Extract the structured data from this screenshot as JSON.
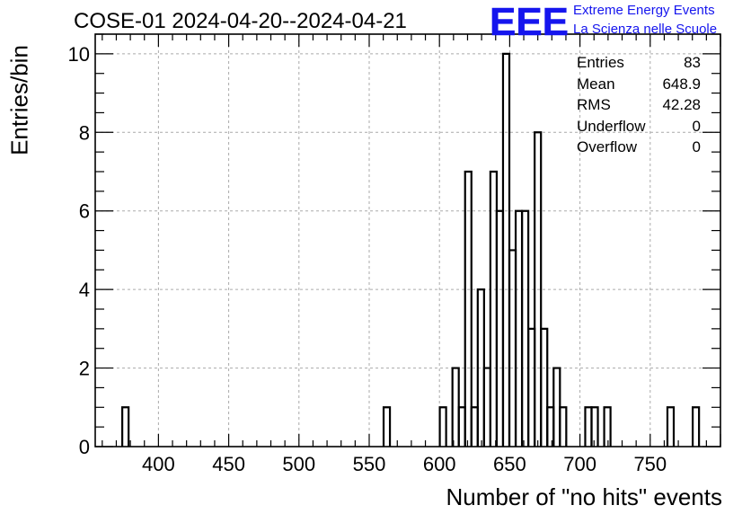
{
  "title": "COSE-01 2024-04-20--2024-04-21",
  "logo": {
    "mark": "EEE",
    "line1": "Extreme Energy Events",
    "line2": "La Scienza nelle Scuole",
    "color": "#1515ee"
  },
  "stats": [
    {
      "label": "Entries",
      "value": "83"
    },
    {
      "label": "Mean",
      "value": "648.9"
    },
    {
      "label": "RMS",
      "value": "42.28"
    },
    {
      "label": "Underflow",
      "value": "0"
    },
    {
      "label": "Overflow",
      "value": "0"
    }
  ],
  "chart_data": {
    "type": "bar",
    "style": "step-histogram",
    "xlabel": "Number of \"no hits\" events",
    "ylabel": "Entries/bin",
    "xlim": [
      355,
      800
    ],
    "ylim": [
      0,
      10.5
    ],
    "bin_width": 4.5,
    "bins": [
      {
        "x": 376.5,
        "count": 1
      },
      {
        "x": 562.5,
        "count": 1
      },
      {
        "x": 602.5,
        "count": 1
      },
      {
        "x": 611.5,
        "count": 2
      },
      {
        "x": 616,
        "count": 1
      },
      {
        "x": 620.5,
        "count": 7
      },
      {
        "x": 625,
        "count": 1
      },
      {
        "x": 629.5,
        "count": 4
      },
      {
        "x": 634,
        "count": 2
      },
      {
        "x": 638.5,
        "count": 7
      },
      {
        "x": 643,
        "count": 6
      },
      {
        "x": 647.5,
        "count": 10
      },
      {
        "x": 652,
        "count": 5
      },
      {
        "x": 656.5,
        "count": 6
      },
      {
        "x": 661,
        "count": 6
      },
      {
        "x": 665.5,
        "count": 3
      },
      {
        "x": 670,
        "count": 8
      },
      {
        "x": 674.5,
        "count": 3
      },
      {
        "x": 679,
        "count": 1
      },
      {
        "x": 683.5,
        "count": 2
      },
      {
        "x": 688,
        "count": 1
      },
      {
        "x": 706,
        "count": 1
      },
      {
        "x": 710.5,
        "count": 1
      },
      {
        "x": 719.5,
        "count": 1
      },
      {
        "x": 764.5,
        "count": 1
      },
      {
        "x": 782.5,
        "count": 1
      }
    ],
    "x_ticks": [
      400,
      450,
      500,
      550,
      600,
      650,
      700,
      750
    ],
    "y_ticks": [
      0,
      2,
      4,
      6,
      8,
      10
    ],
    "grid": true,
    "line_color": "#000000",
    "grid_color": "#aaaaaa"
  }
}
